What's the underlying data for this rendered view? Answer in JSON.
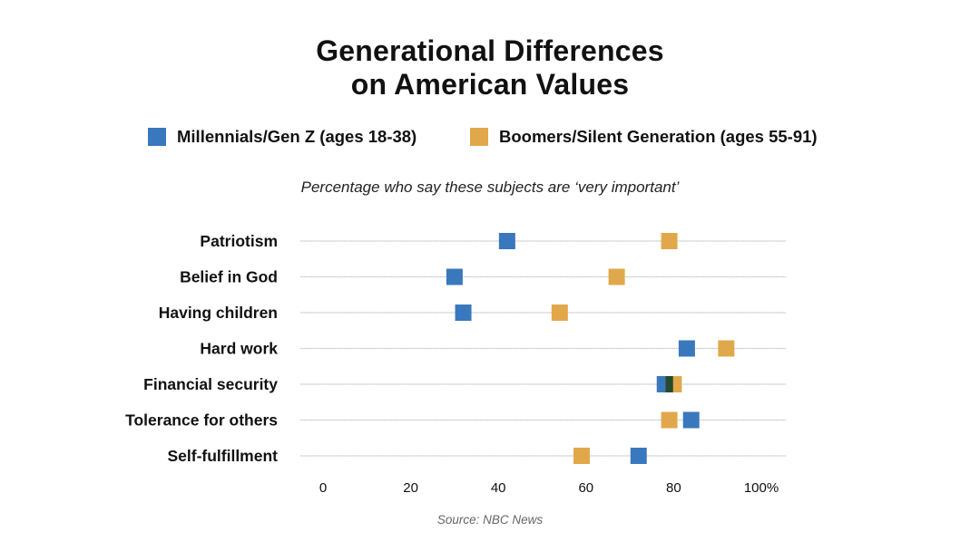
{
  "chart_data": {
    "type": "scatter",
    "title": "Generational Differences on American Values",
    "title_lines": [
      "Generational Differences",
      "on American Values"
    ],
    "subtitle": "Percentage who say these subjects are ‘very important’",
    "source": "Source: NBC News",
    "categories": [
      "Patriotism",
      "Belief in God",
      "Having children",
      "Hard work",
      "Financial security",
      "Tolerance for others",
      "Self-fulfillment"
    ],
    "series": [
      {
        "name": "Millennials/Gen Z (ages 18-38)",
        "color": "#3a78bd",
        "values": [
          42,
          30,
          32,
          83,
          78,
          84,
          72
        ]
      },
      {
        "name": "Boomers/Silent Generation (ages 55-91)",
        "color": "#e1a84b",
        "values": [
          79,
          67,
          54,
          92,
          80,
          79,
          59
        ]
      }
    ],
    "overlap_color": "#274a2e",
    "xlim": [
      0,
      100
    ],
    "xticks": [
      0,
      20,
      40,
      60,
      80,
      100
    ],
    "xtick_labels": [
      "0",
      "20",
      "40",
      "60",
      "80",
      "100%"
    ],
    "xlabel": "",
    "ylabel": "",
    "grid": true,
    "legend_position": "top"
  }
}
